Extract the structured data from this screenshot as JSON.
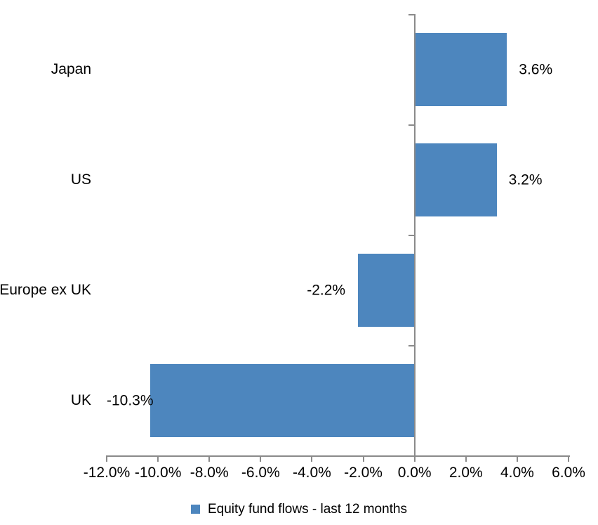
{
  "chart_data": {
    "type": "bar",
    "orientation": "horizontal",
    "categories": [
      "Japan",
      "US",
      "Europe ex UK",
      "UK"
    ],
    "values": [
      3.6,
      3.2,
      -2.2,
      -10.3
    ],
    "data_labels": [
      "3.6%",
      "3.2%",
      "-2.2%",
      "-10.3%"
    ],
    "x_tick_values": [
      -12,
      -10,
      -8,
      -6,
      -4,
      -2,
      0,
      2,
      4,
      6
    ],
    "x_tick_labels": [
      "-12.0%",
      "-10.0%",
      "-8.0%",
      "-6.0%",
      "-4.0%",
      "-2.0%",
      "0.0%",
      "2.0%",
      "4.0%",
      "6.0%"
    ],
    "xlim": [
      -12,
      6
    ],
    "grid": false,
    "legend": {
      "label": "Equity fund flows - last 12 months",
      "position": "bottom"
    },
    "colors": {
      "bar": "#4d86be",
      "axis": "#8a8a8a",
      "text": "#000000"
    }
  }
}
